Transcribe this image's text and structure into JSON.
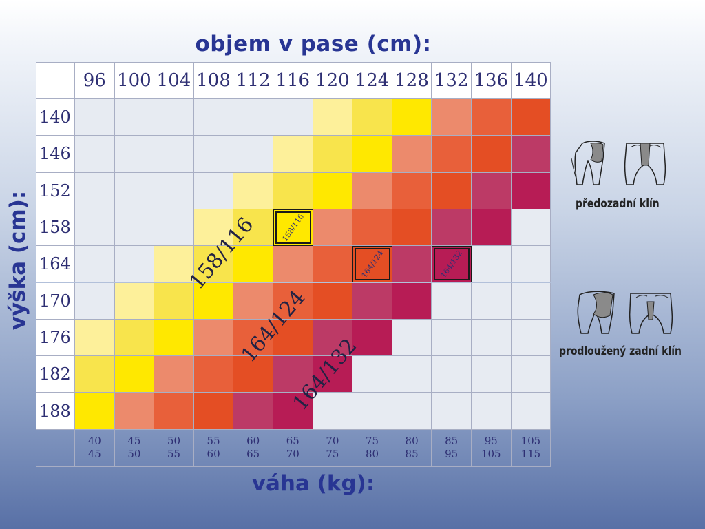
{
  "titles": {
    "top": "objem v pase (cm):",
    "left": "výška (cm):",
    "bottom": "váha (kg):"
  },
  "chart_data": {
    "type": "heatmap",
    "title": "objem v pase (cm):",
    "xlabel": "objem v pase (cm):",
    "ylabel": "výška (cm):",
    "x": [
      "96",
      "100",
      "104",
      "108",
      "112",
      "116",
      "120",
      "124",
      "128",
      "132",
      "136",
      "140"
    ],
    "y": [
      "140",
      "146",
      "152",
      "158",
      "164",
      "170",
      "176",
      "182",
      "188"
    ],
    "weight_label": "váha (kg):",
    "weights": [
      [
        "40",
        "45"
      ],
      [
        "45",
        "50"
      ],
      [
        "50",
        "55"
      ],
      [
        "55",
        "60"
      ],
      [
        "60",
        "65"
      ],
      [
        "65",
        "70"
      ],
      [
        "70",
        "75"
      ],
      [
        "75",
        "80"
      ],
      [
        "80",
        "85"
      ],
      [
        "85",
        "95"
      ],
      [
        "95",
        "105"
      ],
      [
        "105",
        "115"
      ]
    ],
    "palette": [
      "",
      "#fdf09a",
      "#f8e44c",
      "#ffe800",
      "#ec8a6c",
      "#e8603a",
      "#e44e24",
      "#bc3a66",
      "#b71c55"
    ],
    "grid_background": "#e7ebf2",
    "levels": [
      [
        0,
        0,
        0,
        0,
        0,
        0,
        1,
        2,
        3,
        4,
        5,
        6
      ],
      [
        0,
        0,
        0,
        0,
        0,
        1,
        2,
        3,
        4,
        5,
        6,
        7
      ],
      [
        0,
        0,
        0,
        0,
        1,
        2,
        3,
        4,
        5,
        6,
        7,
        8
      ],
      [
        0,
        0,
        0,
        1,
        2,
        3,
        4,
        5,
        6,
        7,
        8,
        0
      ],
      [
        0,
        0,
        1,
        2,
        3,
        4,
        5,
        6,
        7,
        8,
        0,
        0
      ],
      [
        0,
        1,
        2,
        3,
        4,
        5,
        6,
        7,
        8,
        0,
        0,
        0
      ],
      [
        1,
        2,
        3,
        4,
        5,
        6,
        7,
        8,
        0,
        0,
        0,
        0
      ],
      [
        2,
        3,
        4,
        5,
        6,
        7,
        8,
        0,
        0,
        0,
        0,
        0
      ],
      [
        3,
        4,
        5,
        6,
        7,
        8,
        0,
        0,
        0,
        0,
        0,
        0
      ]
    ],
    "highlighted_cells": [
      {
        "label": "158/116",
        "row": "158",
        "col": "116"
      },
      {
        "label": "164/124",
        "row": "164",
        "col": "124"
      },
      {
        "label": "164/132",
        "row": "164",
        "col": "132"
      }
    ],
    "diagonal_labels": [
      "158/116",
      "164/124",
      "164/132"
    ]
  },
  "legend": {
    "items": [
      {
        "label": "předozadní klín",
        "icon": "pants-front-back-gusset-icon"
      },
      {
        "label": "prodloužený zadní klín",
        "icon": "pants-extended-back-gusset-icon"
      }
    ]
  }
}
